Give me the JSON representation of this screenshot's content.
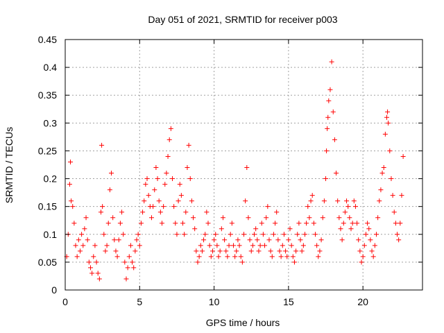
{
  "chart_data": {
    "type": "scatter",
    "title": "Day 051 of 2021, SRMTID for receiver p003",
    "xlabel": "GPS time / hours",
    "ylabel": "SRMTID / TECUs",
    "xlim": [
      0,
      24
    ],
    "ylim": [
      0,
      0.45
    ],
    "xticks": [
      "0",
      "5",
      "10",
      "15",
      "20"
    ],
    "yticks": [
      "0",
      "0.05",
      "0.1",
      "0.15",
      "0.2",
      "0.25",
      "0.3",
      "0.35",
      "0.4",
      "0.45"
    ],
    "grid": true,
    "marker": "+",
    "color": "#ff0000",
    "series": [
      {
        "name": "SRMTID",
        "x": [
          0.1,
          0.2,
          0.3,
          0.35,
          0.4,
          0.5,
          0.6,
          0.7,
          0.8,
          0.9,
          1.0,
          1.1,
          1.2,
          1.3,
          1.4,
          1.5,
          1.6,
          1.7,
          1.8,
          1.9,
          2.0,
          2.1,
          2.2,
          2.3,
          2.4,
          2.45,
          2.5,
          2.6,
          2.7,
          2.8,
          2.9,
          3.0,
          3.1,
          3.2,
          3.3,
          3.4,
          3.5,
          3.6,
          3.7,
          3.8,
          3.9,
          4.0,
          4.1,
          4.2,
          4.3,
          4.4,
          4.5,
          4.6,
          4.7,
          4.8,
          4.9,
          5.0,
          5.1,
          5.2,
          5.3,
          5.4,
          5.5,
          5.6,
          5.7,
          5.8,
          5.9,
          6.0,
          6.1,
          6.2,
          6.3,
          6.4,
          6.5,
          6.6,
          6.7,
          6.8,
          6.9,
          7.0,
          7.1,
          7.2,
          7.3,
          7.4,
          7.5,
          7.6,
          7.7,
          7.8,
          7.9,
          8.0,
          8.1,
          8.2,
          8.3,
          8.4,
          8.5,
          8.6,
          8.7,
          8.8,
          8.9,
          9.0,
          9.1,
          9.2,
          9.3,
          9.4,
          9.5,
          9.6,
          9.7,
          9.8,
          9.9,
          10.0,
          10.1,
          10.2,
          10.3,
          10.4,
          10.5,
          10.6,
          10.7,
          10.8,
          10.9,
          11.0,
          11.1,
          11.2,
          11.3,
          11.4,
          11.5,
          11.6,
          11.7,
          11.8,
          11.9,
          12.0,
          12.1,
          12.2,
          12.3,
          12.4,
          12.5,
          12.6,
          12.7,
          12.8,
          12.9,
          13.0,
          13.1,
          13.2,
          13.3,
          13.4,
          13.5,
          13.6,
          13.7,
          13.8,
          13.9,
          14.0,
          14.1,
          14.2,
          14.3,
          14.4,
          14.5,
          14.6,
          14.7,
          14.8,
          14.9,
          15.0,
          15.1,
          15.2,
          15.3,
          15.4,
          15.5,
          15.6,
          15.7,
          15.8,
          15.9,
          16.0,
          16.1,
          16.2,
          16.3,
          16.4,
          16.5,
          16.6,
          16.7,
          16.8,
          16.9,
          17.0,
          17.1,
          17.2,
          17.3,
          17.4,
          17.5,
          17.55,
          17.6,
          17.65,
          17.7,
          17.8,
          17.9,
          18.0,
          18.1,
          18.2,
          18.3,
          18.4,
          18.5,
          18.6,
          18.7,
          18.8,
          18.9,
          19.0,
          19.1,
          19.2,
          19.3,
          19.4,
          19.5,
          19.6,
          19.7,
          19.8,
          19.9,
          20.0,
          20.1,
          20.2,
          20.3,
          20.4,
          20.5,
          20.6,
          20.7,
          20.8,
          20.9,
          21.0,
          21.1,
          21.2,
          21.3,
          21.4,
          21.5,
          21.6,
          21.65,
          21.7,
          21.8,
          21.9,
          22.0,
          22.1,
          22.2,
          22.3,
          22.4,
          22.5,
          22.6,
          22.7
        ],
        "y": [
          0.06,
          0.1,
          0.19,
          0.23,
          0.16,
          0.15,
          0.12,
          0.08,
          0.06,
          0.09,
          0.07,
          0.1,
          0.08,
          0.11,
          0.13,
          0.09,
          0.05,
          0.04,
          0.03,
          0.06,
          0.08,
          0.05,
          0.03,
          0.02,
          0.14,
          0.26,
          0.15,
          0.1,
          0.07,
          0.08,
          0.12,
          0.18,
          0.21,
          0.13,
          0.09,
          0.07,
          0.06,
          0.09,
          0.12,
          0.14,
          0.1,
          0.05,
          0.02,
          0.04,
          0.06,
          0.08,
          0.05,
          0.04,
          0.07,
          0.09,
          0.1,
          0.08,
          0.12,
          0.14,
          0.16,
          0.19,
          0.2,
          0.17,
          0.15,
          0.13,
          0.15,
          0.18,
          0.22,
          0.2,
          0.16,
          0.14,
          0.12,
          0.15,
          0.19,
          0.21,
          0.24,
          0.27,
          0.29,
          0.2,
          0.15,
          0.12,
          0.1,
          0.16,
          0.19,
          0.17,
          0.12,
          0.1,
          0.14,
          0.22,
          0.26,
          0.2,
          0.16,
          0.13,
          0.11,
          0.07,
          0.05,
          0.06,
          0.08,
          0.07,
          0.09,
          0.1,
          0.14,
          0.12,
          0.08,
          0.06,
          0.07,
          0.09,
          0.1,
          0.08,
          0.06,
          0.07,
          0.11,
          0.13,
          0.09,
          0.07,
          0.06,
          0.08,
          0.1,
          0.12,
          0.08,
          0.06,
          0.07,
          0.09,
          0.08,
          0.06,
          0.05,
          0.1,
          0.16,
          0.22,
          0.13,
          0.09,
          0.07,
          0.08,
          0.1,
          0.11,
          0.09,
          0.07,
          0.08,
          0.12,
          0.1,
          0.08,
          0.13,
          0.15,
          0.09,
          0.07,
          0.06,
          0.1,
          0.12,
          0.14,
          0.09,
          0.07,
          0.06,
          0.08,
          0.1,
          0.07,
          0.06,
          0.09,
          0.11,
          0.08,
          0.06,
          0.05,
          0.07,
          0.1,
          0.12,
          0.09,
          0.07,
          0.08,
          0.1,
          0.12,
          0.15,
          0.13,
          0.16,
          0.17,
          0.12,
          0.1,
          0.08,
          0.06,
          0.07,
          0.09,
          0.13,
          0.16,
          0.2,
          0.25,
          0.29,
          0.31,
          0.34,
          0.36,
          0.41,
          0.32,
          0.27,
          0.21,
          0.16,
          0.13,
          0.11,
          0.09,
          0.12,
          0.14,
          0.16,
          0.15,
          0.13,
          0.11,
          0.12,
          0.16,
          0.15,
          0.12,
          0.09,
          0.07,
          0.05,
          0.06,
          0.08,
          0.1,
          0.12,
          0.11,
          0.09,
          0.07,
          0.06,
          0.08,
          0.1,
          0.13,
          0.16,
          0.18,
          0.21,
          0.22,
          0.28,
          0.31,
          0.32,
          0.3,
          0.25,
          0.2,
          0.17,
          0.14,
          0.12,
          0.1,
          0.09,
          0.12,
          0.17,
          0.24
        ]
      }
    ]
  }
}
